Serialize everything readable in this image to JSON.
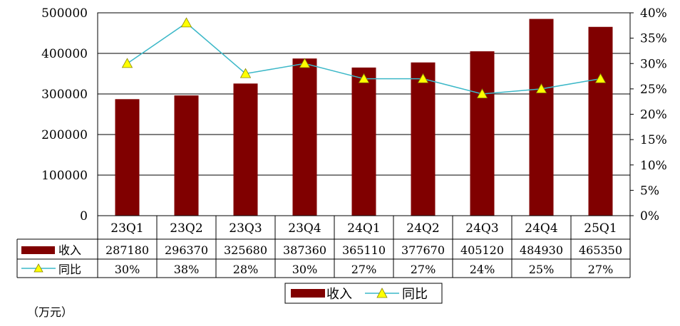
{
  "chart_data": {
    "type": "bar",
    "categories": [
      "23Q1",
      "23Q2",
      "23Q3",
      "23Q4",
      "24Q1",
      "24Q2",
      "24Q3",
      "24Q4",
      "25Q1"
    ],
    "series": [
      {
        "name": "收入",
        "type": "bar",
        "axis": "left",
        "color": "#800000",
        "values": [
          287180,
          296370,
          325680,
          387360,
          365110,
          377670,
          405120,
          484930,
          465350
        ]
      },
      {
        "name": "同比",
        "type": "line",
        "axis": "right",
        "color": "#3cb8c8",
        "marker_color": "#ffff00",
        "values": [
          30,
          38,
          28,
          30,
          27,
          27,
          24,
          25,
          27
        ],
        "value_labels": [
          "30%",
          "38%",
          "28%",
          "30%",
          "27%",
          "27%",
          "24%",
          "25%",
          "27%"
        ]
      }
    ],
    "ylim": [
      0,
      500000
    ],
    "yticks": [
      "0",
      "100000",
      "200000",
      "300000",
      "400000",
      "500000"
    ],
    "y2lim": [
      0,
      40
    ],
    "y2ticks": [
      "0%",
      "5%",
      "10%",
      "15%",
      "20%",
      "25%",
      "30%",
      "35%",
      "40%"
    ],
    "grid": true,
    "legend": [
      "收入",
      "同比"
    ],
    "legend_placement": "bottom",
    "data_table": true,
    "unit_note": "（万元）"
  }
}
